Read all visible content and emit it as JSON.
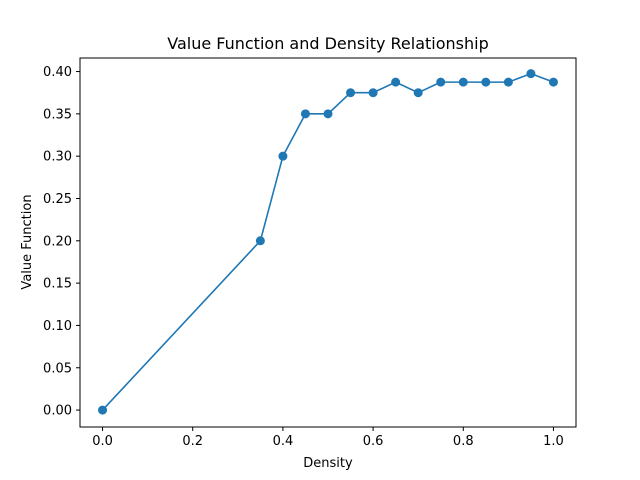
{
  "chart_data": {
    "type": "line",
    "title": "Value Function and Density Relationship",
    "xlabel": "Density",
    "ylabel": "Value Function",
    "xlim": [
      -0.05,
      1.05
    ],
    "ylim": [
      -0.02,
      0.416
    ],
    "xticks": [
      0.0,
      0.2,
      0.4,
      0.6,
      0.8,
      1.0
    ],
    "xtick_labels": [
      "0.0",
      "0.2",
      "0.4",
      "0.6",
      "0.8",
      "1.0"
    ],
    "yticks": [
      0.0,
      0.05,
      0.1,
      0.15,
      0.2,
      0.25,
      0.3,
      0.35,
      0.4
    ],
    "ytick_labels": [
      "0.00",
      "0.05",
      "0.10",
      "0.15",
      "0.20",
      "0.25",
      "0.30",
      "0.35",
      "0.40"
    ],
    "grid": false,
    "marker": "circle",
    "color": "#1f77b4",
    "series": [
      {
        "x": [
          0.0,
          0.35,
          0.4,
          0.45,
          0.5,
          0.55,
          0.6,
          0.65,
          0.7,
          0.75,
          0.8,
          0.85,
          0.9,
          0.95,
          1.0
        ],
        "y": [
          0.0,
          0.2,
          0.3,
          0.35,
          0.35,
          0.375,
          0.375,
          0.3875,
          0.375,
          0.3875,
          0.3875,
          0.3875,
          0.3875,
          0.3975,
          0.3875
        ]
      }
    ]
  }
}
